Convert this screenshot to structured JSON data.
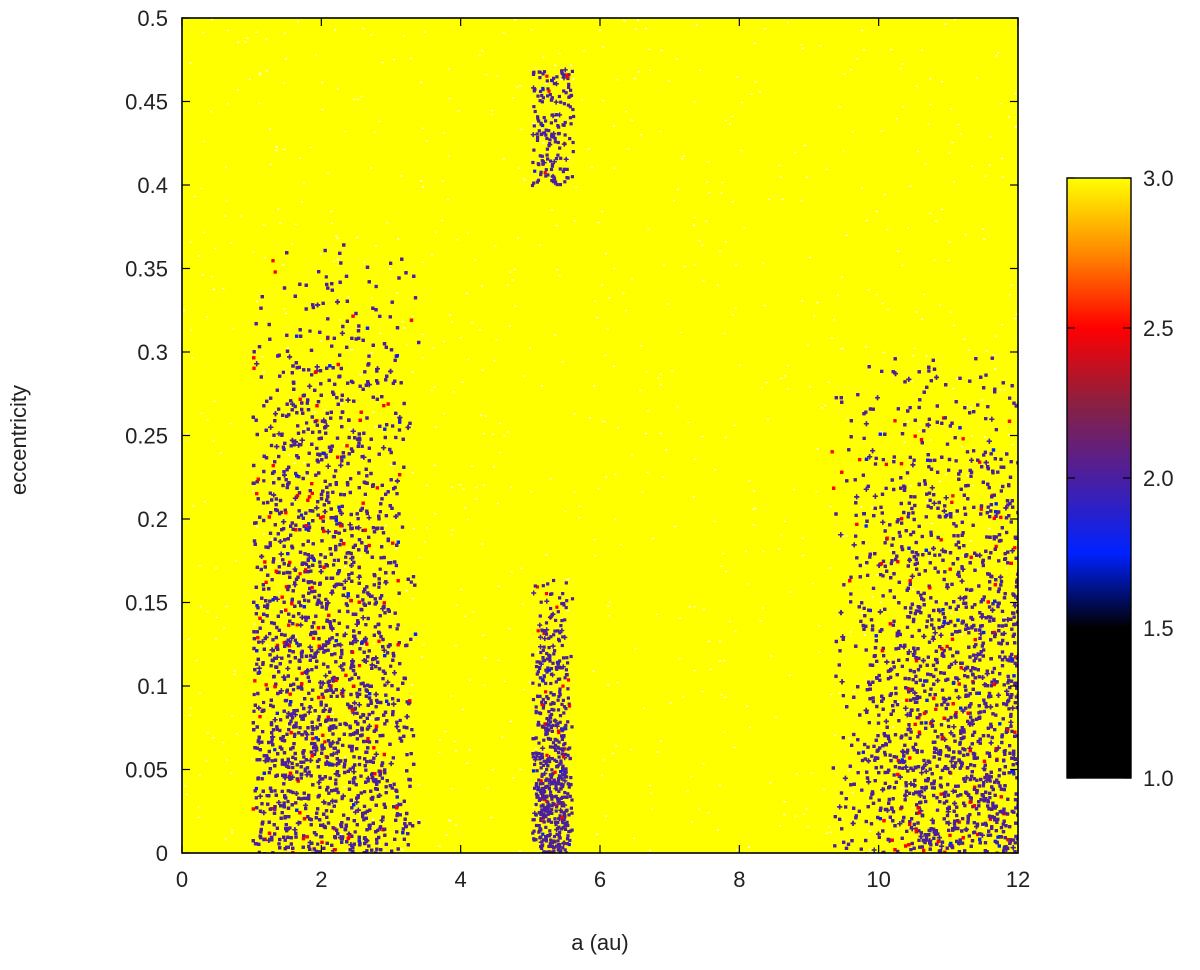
{
  "chart_data": {
    "type": "heatmap",
    "title": "",
    "xlabel": "a (au)",
    "ylabel": "eccentricity",
    "xlim": [
      0,
      12
    ],
    "ylim": [
      0,
      0.5
    ],
    "x_ticks": [
      0,
      2,
      4,
      6,
      8,
      10,
      12
    ],
    "x_tick_labels": [
      "0",
      "2",
      "4",
      "6",
      "8",
      "10",
      "12"
    ],
    "y_ticks": [
      0,
      0.05,
      0.1,
      0.15,
      0.2,
      0.25,
      0.3,
      0.35,
      0.4,
      0.45,
      0.5
    ],
    "y_tick_labels": [
      "0",
      "0.05",
      "0.1",
      "0.15",
      "0.2",
      "0.25",
      "0.3",
      "0.35",
      "0.4",
      "0.45",
      "0.5"
    ],
    "grid": false,
    "background_value": 3.0,
    "colorbar": {
      "placement": "right",
      "range": [
        1.0,
        3.0
      ],
      "ticks": [
        1.0,
        1.5,
        2.0,
        2.5,
        3.0
      ],
      "tick_labels": [
        "1.0",
        "1.5",
        "2.0",
        "2.5",
        "3.0"
      ],
      "color_stops": [
        {
          "value": 1.0,
          "color": "#000000"
        },
        {
          "value": 1.5,
          "color": "#000000"
        },
        {
          "value": 1.75,
          "color": "#0022ff"
        },
        {
          "value": 2.0,
          "color": "#4a1fa0"
        },
        {
          "value": 2.25,
          "color": "#8a2040"
        },
        {
          "value": 2.5,
          "color": "#ff0000"
        },
        {
          "value": 2.75,
          "color": "#ff8800"
        },
        {
          "value": 3.0,
          "color": "#ffff00"
        }
      ]
    },
    "regions": [
      {
        "a_min": 1.0,
        "a_max": 3.4,
        "a_center": 2.0,
        "e_max": 0.37,
        "value": 2.0
      },
      {
        "a_min": 5.0,
        "a_max": 5.6,
        "a_center": 5.3,
        "e_max": 0.17,
        "value": 2.0
      },
      {
        "a_min": 5.0,
        "a_max": 5.6,
        "a_center": 5.3,
        "e_min": 0.4,
        "e_max": 0.47,
        "value": 2.0
      },
      {
        "a_min": 9.3,
        "a_max": 12.0,
        "a_center": 12.0,
        "e_max": 0.3,
        "value": 2.0
      }
    ]
  }
}
